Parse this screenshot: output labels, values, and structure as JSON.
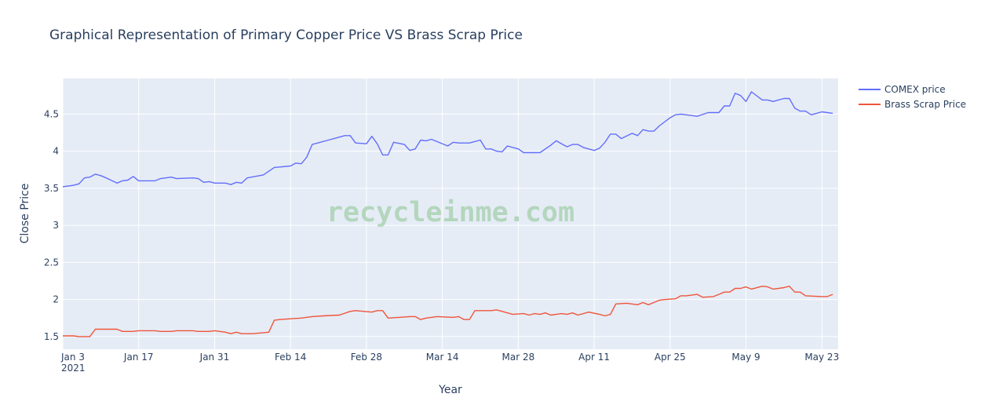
{
  "chart_data": {
    "type": "line",
    "title": "Graphical Representation of Primary Copper Price VS Brass Scrap Price",
    "xlabel": "Year",
    "ylabel": "Close Price",
    "watermark": "recycleinme.com",
    "x_tick_labels": [
      "Jan 3",
      "Jan 17",
      "Jan 31",
      "Feb 14",
      "Feb 28",
      "Mar 14",
      "Mar 28",
      "Apr 11",
      "Apr 25",
      "May 9",
      "May 23"
    ],
    "x_year_label": "2021",
    "y_tick_labels": [
      "1.5",
      "2",
      "2.5",
      "3",
      "3.5",
      "4",
      "4.5"
    ],
    "y_ticks": [
      1.5,
      2,
      2.5,
      3,
      3.5,
      4,
      4.5
    ],
    "xlim": [
      "2021-01-03",
      "2021-05-26"
    ],
    "ylim": [
      1.33,
      4.98
    ],
    "grid": true,
    "legend_position": "top-right",
    "background_color": "#e5ecf6",
    "series": [
      {
        "name": "COMEX price",
        "color": "#636efa",
        "points": [
          [
            "2021-01-03",
            3.52
          ],
          [
            "2021-01-04",
            3.53
          ],
          [
            "2021-01-05",
            3.54
          ],
          [
            "2021-01-06",
            3.56
          ],
          [
            "2021-01-07",
            3.64
          ],
          [
            "2021-01-08",
            3.65
          ],
          [
            "2021-01-09",
            3.69
          ],
          [
            "2021-01-10",
            3.67
          ],
          [
            "2021-01-11",
            3.64
          ],
          [
            "2021-01-13",
            3.57
          ],
          [
            "2021-01-14",
            3.6
          ],
          [
            "2021-01-15",
            3.61
          ],
          [
            "2021-01-16",
            3.66
          ],
          [
            "2021-01-17",
            3.6
          ],
          [
            "2021-01-20",
            3.6
          ],
          [
            "2021-01-21",
            3.63
          ],
          [
            "2021-01-22",
            3.64
          ],
          [
            "2021-01-23",
            3.65
          ],
          [
            "2021-01-24",
            3.63
          ],
          [
            "2021-01-27",
            3.64
          ],
          [
            "2021-01-28",
            3.63
          ],
          [
            "2021-01-29",
            3.58
          ],
          [
            "2021-01-30",
            3.59
          ],
          [
            "2021-01-31",
            3.57
          ],
          [
            "2021-02-02",
            3.57
          ],
          [
            "2021-02-03",
            3.55
          ],
          [
            "2021-02-04",
            3.58
          ],
          [
            "2021-02-05",
            3.57
          ],
          [
            "2021-02-06",
            3.64
          ],
          [
            "2021-02-09",
            3.68
          ],
          [
            "2021-02-11",
            3.78
          ],
          [
            "2021-02-14",
            3.8
          ],
          [
            "2021-02-15",
            3.84
          ],
          [
            "2021-02-16",
            3.83
          ],
          [
            "2021-02-17",
            3.92
          ],
          [
            "2021-02-18",
            4.09
          ],
          [
            "2021-02-21",
            4.15
          ],
          [
            "2021-02-23",
            4.19
          ],
          [
            "2021-02-24",
            4.21
          ],
          [
            "2021-02-25",
            4.21
          ],
          [
            "2021-02-26",
            4.11
          ],
          [
            "2021-02-28",
            4.1
          ],
          [
            "2021-03-01",
            4.2
          ],
          [
            "2021-03-02",
            4.1
          ],
          [
            "2021-03-03",
            3.95
          ],
          [
            "2021-03-04",
            3.95
          ],
          [
            "2021-03-05",
            4.12
          ],
          [
            "2021-03-07",
            4.09
          ],
          [
            "2021-03-08",
            4.01
          ],
          [
            "2021-03-09",
            4.03
          ],
          [
            "2021-03-10",
            4.15
          ],
          [
            "2021-03-11",
            4.14
          ],
          [
            "2021-03-12",
            4.16
          ],
          [
            "2021-03-15",
            4.07
          ],
          [
            "2021-03-16",
            4.12
          ],
          [
            "2021-03-17",
            4.11
          ],
          [
            "2021-03-19",
            4.11
          ],
          [
            "2021-03-21",
            4.15
          ],
          [
            "2021-03-22",
            4.03
          ],
          [
            "2021-03-23",
            4.03
          ],
          [
            "2021-03-24",
            4.0
          ],
          [
            "2021-03-25",
            3.99
          ],
          [
            "2021-03-26",
            4.07
          ],
          [
            "2021-03-28",
            4.03
          ],
          [
            "2021-03-29",
            3.98
          ],
          [
            "2021-04-01",
            3.98
          ],
          [
            "2021-04-03",
            4.08
          ],
          [
            "2021-04-04",
            4.14
          ],
          [
            "2021-04-05",
            4.1
          ],
          [
            "2021-04-06",
            4.06
          ],
          [
            "2021-04-07",
            4.09
          ],
          [
            "2021-04-08",
            4.09
          ],
          [
            "2021-04-09",
            4.05
          ],
          [
            "2021-04-11",
            4.01
          ],
          [
            "2021-04-12",
            4.04
          ],
          [
            "2021-04-13",
            4.12
          ],
          [
            "2021-04-14",
            4.23
          ],
          [
            "2021-04-15",
            4.23
          ],
          [
            "2021-04-16",
            4.17
          ],
          [
            "2021-04-18",
            4.24
          ],
          [
            "2021-04-19",
            4.21
          ],
          [
            "2021-04-20",
            4.29
          ],
          [
            "2021-04-21",
            4.27
          ],
          [
            "2021-04-22",
            4.27
          ],
          [
            "2021-04-23",
            4.34
          ],
          [
            "2021-04-25",
            4.45
          ],
          [
            "2021-04-26",
            4.49
          ],
          [
            "2021-04-27",
            4.5
          ],
          [
            "2021-04-28",
            4.49
          ],
          [
            "2021-04-30",
            4.47
          ],
          [
            "2021-05-02",
            4.52
          ],
          [
            "2021-05-04",
            4.52
          ],
          [
            "2021-05-05",
            4.61
          ],
          [
            "2021-05-06",
            4.61
          ],
          [
            "2021-05-07",
            4.78
          ],
          [
            "2021-05-08",
            4.75
          ],
          [
            "2021-05-09",
            4.67
          ],
          [
            "2021-05-10",
            4.8
          ],
          [
            "2021-05-12",
            4.69
          ],
          [
            "2021-05-13",
            4.69
          ],
          [
            "2021-05-14",
            4.67
          ],
          [
            "2021-05-16",
            4.71
          ],
          [
            "2021-05-17",
            4.71
          ],
          [
            "2021-05-18",
            4.58
          ],
          [
            "2021-05-19",
            4.54
          ],
          [
            "2021-05-20",
            4.54
          ],
          [
            "2021-05-21",
            4.49
          ],
          [
            "2021-05-22",
            4.51
          ],
          [
            "2021-05-23",
            4.53
          ],
          [
            "2021-05-24",
            4.52
          ],
          [
            "2021-05-25",
            4.51
          ]
        ]
      },
      {
        "name": "Brass Scrap Price",
        "color": "#ef553b",
        "points": [
          [
            "2021-01-03",
            1.51
          ],
          [
            "2021-01-05",
            1.51
          ],
          [
            "2021-01-06",
            1.5
          ],
          [
            "2021-01-08",
            1.5
          ],
          [
            "2021-01-09",
            1.6
          ],
          [
            "2021-01-13",
            1.6
          ],
          [
            "2021-01-14",
            1.57
          ],
          [
            "2021-01-16",
            1.57
          ],
          [
            "2021-01-17",
            1.58
          ],
          [
            "2021-01-20",
            1.58
          ],
          [
            "2021-01-21",
            1.57
          ],
          [
            "2021-01-23",
            1.57
          ],
          [
            "2021-01-24",
            1.58
          ],
          [
            "2021-01-27",
            1.58
          ],
          [
            "2021-01-28",
            1.57
          ],
          [
            "2021-01-30",
            1.57
          ],
          [
            "2021-01-31",
            1.58
          ],
          [
            "2021-02-02",
            1.56
          ],
          [
            "2021-02-03",
            1.54
          ],
          [
            "2021-02-04",
            1.56
          ],
          [
            "2021-02-05",
            1.54
          ],
          [
            "2021-02-07",
            1.54
          ],
          [
            "2021-02-10",
            1.56
          ],
          [
            "2021-02-11",
            1.72
          ],
          [
            "2021-02-12",
            1.73
          ],
          [
            "2021-02-14",
            1.74
          ],
          [
            "2021-02-16",
            1.75
          ],
          [
            "2021-02-18",
            1.77
          ],
          [
            "2021-02-20",
            1.78
          ],
          [
            "2021-02-23",
            1.79
          ],
          [
            "2021-02-25",
            1.84
          ],
          [
            "2021-02-26",
            1.85
          ],
          [
            "2021-03-01",
            1.83
          ],
          [
            "2021-03-02",
            1.85
          ],
          [
            "2021-03-03",
            1.85
          ],
          [
            "2021-03-04",
            1.75
          ],
          [
            "2021-03-06",
            1.76
          ],
          [
            "2021-03-08",
            1.77
          ],
          [
            "2021-03-09",
            1.77
          ],
          [
            "2021-03-10",
            1.73
          ],
          [
            "2021-03-11",
            1.75
          ],
          [
            "2021-03-12",
            1.76
          ],
          [
            "2021-03-13",
            1.77
          ],
          [
            "2021-03-16",
            1.76
          ],
          [
            "2021-03-17",
            1.77
          ],
          [
            "2021-03-18",
            1.73
          ],
          [
            "2021-03-19",
            1.73
          ],
          [
            "2021-03-20",
            1.85
          ],
          [
            "2021-03-23",
            1.85
          ],
          [
            "2021-03-24",
            1.86
          ],
          [
            "2021-03-27",
            1.8
          ],
          [
            "2021-03-29",
            1.81
          ],
          [
            "2021-03-30",
            1.79
          ],
          [
            "2021-03-31",
            1.81
          ],
          [
            "2021-04-01",
            1.8
          ],
          [
            "2021-04-02",
            1.82
          ],
          [
            "2021-04-03",
            1.79
          ],
          [
            "2021-04-04",
            1.8
          ],
          [
            "2021-04-05",
            1.81
          ],
          [
            "2021-04-06",
            1.8
          ],
          [
            "2021-04-07",
            1.82
          ],
          [
            "2021-04-08",
            1.79
          ],
          [
            "2021-04-10",
            1.83
          ],
          [
            "2021-04-12",
            1.8
          ],
          [
            "2021-04-13",
            1.78
          ],
          [
            "2021-04-14",
            1.8
          ],
          [
            "2021-04-15",
            1.94
          ],
          [
            "2021-04-17",
            1.95
          ],
          [
            "2021-04-19",
            1.93
          ],
          [
            "2021-04-20",
            1.96
          ],
          [
            "2021-04-21",
            1.93
          ],
          [
            "2021-04-22",
            1.96
          ],
          [
            "2021-04-23",
            1.99
          ],
          [
            "2021-04-24",
            2.0
          ],
          [
            "2021-04-26",
            2.01
          ],
          [
            "2021-04-27",
            2.05
          ],
          [
            "2021-04-28",
            2.05
          ],
          [
            "2021-04-30",
            2.07
          ],
          [
            "2021-05-01",
            2.03
          ],
          [
            "2021-05-03",
            2.04
          ],
          [
            "2021-05-04",
            2.07
          ],
          [
            "2021-05-05",
            2.1
          ],
          [
            "2021-05-06",
            2.1
          ],
          [
            "2021-05-07",
            2.15
          ],
          [
            "2021-05-08",
            2.15
          ],
          [
            "2021-05-09",
            2.17
          ],
          [
            "2021-05-10",
            2.14
          ],
          [
            "2021-05-12",
            2.18
          ],
          [
            "2021-05-13",
            2.17
          ],
          [
            "2021-05-14",
            2.14
          ],
          [
            "2021-05-16",
            2.16
          ],
          [
            "2021-05-17",
            2.18
          ],
          [
            "2021-05-18",
            2.1
          ],
          [
            "2021-05-19",
            2.1
          ],
          [
            "2021-05-20",
            2.05
          ],
          [
            "2021-05-23",
            2.04
          ],
          [
            "2021-05-24",
            2.04
          ],
          [
            "2021-05-25",
            2.07
          ]
        ]
      }
    ]
  }
}
